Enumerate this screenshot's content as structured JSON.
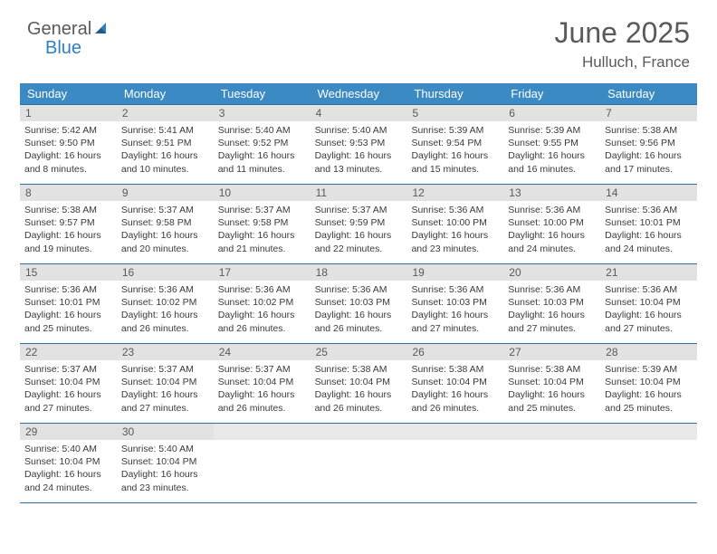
{
  "logo": {
    "text1": "General",
    "text2": "Blue"
  },
  "title": "June 2025",
  "location": "Hulluch, France",
  "colors": {
    "header_bg": "#3b8ac4",
    "week_border": "#2d6ea5",
    "daynum_bg": "#e2e2e2",
    "text_muted": "#5a5a5a",
    "logo_blue": "#2f7fc1"
  },
  "daysOfWeek": [
    "Sunday",
    "Monday",
    "Tuesday",
    "Wednesday",
    "Thursday",
    "Friday",
    "Saturday"
  ],
  "weeks": [
    [
      {
        "n": "1",
        "sunrise": "5:42 AM",
        "sunset": "9:50 PM",
        "daylight": "16 hours and 8 minutes."
      },
      {
        "n": "2",
        "sunrise": "5:41 AM",
        "sunset": "9:51 PM",
        "daylight": "16 hours and 10 minutes."
      },
      {
        "n": "3",
        "sunrise": "5:40 AM",
        "sunset": "9:52 PM",
        "daylight": "16 hours and 11 minutes."
      },
      {
        "n": "4",
        "sunrise": "5:40 AM",
        "sunset": "9:53 PM",
        "daylight": "16 hours and 13 minutes."
      },
      {
        "n": "5",
        "sunrise": "5:39 AM",
        "sunset": "9:54 PM",
        "daylight": "16 hours and 15 minutes."
      },
      {
        "n": "6",
        "sunrise": "5:39 AM",
        "sunset": "9:55 PM",
        "daylight": "16 hours and 16 minutes."
      },
      {
        "n": "7",
        "sunrise": "5:38 AM",
        "sunset": "9:56 PM",
        "daylight": "16 hours and 17 minutes."
      }
    ],
    [
      {
        "n": "8",
        "sunrise": "5:38 AM",
        "sunset": "9:57 PM",
        "daylight": "16 hours and 19 minutes."
      },
      {
        "n": "9",
        "sunrise": "5:37 AM",
        "sunset": "9:58 PM",
        "daylight": "16 hours and 20 minutes."
      },
      {
        "n": "10",
        "sunrise": "5:37 AM",
        "sunset": "9:58 PM",
        "daylight": "16 hours and 21 minutes."
      },
      {
        "n": "11",
        "sunrise": "5:37 AM",
        "sunset": "9:59 PM",
        "daylight": "16 hours and 22 minutes."
      },
      {
        "n": "12",
        "sunrise": "5:36 AM",
        "sunset": "10:00 PM",
        "daylight": "16 hours and 23 minutes."
      },
      {
        "n": "13",
        "sunrise": "5:36 AM",
        "sunset": "10:00 PM",
        "daylight": "16 hours and 24 minutes."
      },
      {
        "n": "14",
        "sunrise": "5:36 AM",
        "sunset": "10:01 PM",
        "daylight": "16 hours and 24 minutes."
      }
    ],
    [
      {
        "n": "15",
        "sunrise": "5:36 AM",
        "sunset": "10:01 PM",
        "daylight": "16 hours and 25 minutes."
      },
      {
        "n": "16",
        "sunrise": "5:36 AM",
        "sunset": "10:02 PM",
        "daylight": "16 hours and 26 minutes."
      },
      {
        "n": "17",
        "sunrise": "5:36 AM",
        "sunset": "10:02 PM",
        "daylight": "16 hours and 26 minutes."
      },
      {
        "n": "18",
        "sunrise": "5:36 AM",
        "sunset": "10:03 PM",
        "daylight": "16 hours and 26 minutes."
      },
      {
        "n": "19",
        "sunrise": "5:36 AM",
        "sunset": "10:03 PM",
        "daylight": "16 hours and 27 minutes."
      },
      {
        "n": "20",
        "sunrise": "5:36 AM",
        "sunset": "10:03 PM",
        "daylight": "16 hours and 27 minutes."
      },
      {
        "n": "21",
        "sunrise": "5:36 AM",
        "sunset": "10:04 PM",
        "daylight": "16 hours and 27 minutes."
      }
    ],
    [
      {
        "n": "22",
        "sunrise": "5:37 AM",
        "sunset": "10:04 PM",
        "daylight": "16 hours and 27 minutes."
      },
      {
        "n": "23",
        "sunrise": "5:37 AM",
        "sunset": "10:04 PM",
        "daylight": "16 hours and 27 minutes."
      },
      {
        "n": "24",
        "sunrise": "5:37 AM",
        "sunset": "10:04 PM",
        "daylight": "16 hours and 26 minutes."
      },
      {
        "n": "25",
        "sunrise": "5:38 AM",
        "sunset": "10:04 PM",
        "daylight": "16 hours and 26 minutes."
      },
      {
        "n": "26",
        "sunrise": "5:38 AM",
        "sunset": "10:04 PM",
        "daylight": "16 hours and 26 minutes."
      },
      {
        "n": "27",
        "sunrise": "5:38 AM",
        "sunset": "10:04 PM",
        "daylight": "16 hours and 25 minutes."
      },
      {
        "n": "28",
        "sunrise": "5:39 AM",
        "sunset": "10:04 PM",
        "daylight": "16 hours and 25 minutes."
      }
    ],
    [
      {
        "n": "29",
        "sunrise": "5:40 AM",
        "sunset": "10:04 PM",
        "daylight": "16 hours and 24 minutes."
      },
      {
        "n": "30",
        "sunrise": "5:40 AM",
        "sunset": "10:04 PM",
        "daylight": "16 hours and 23 minutes."
      },
      {
        "empty": true
      },
      {
        "empty": true
      },
      {
        "empty": true
      },
      {
        "empty": true
      },
      {
        "empty": true
      }
    ]
  ],
  "labels": {
    "sunrise": "Sunrise:",
    "sunset": "Sunset:",
    "daylight": "Daylight:"
  }
}
